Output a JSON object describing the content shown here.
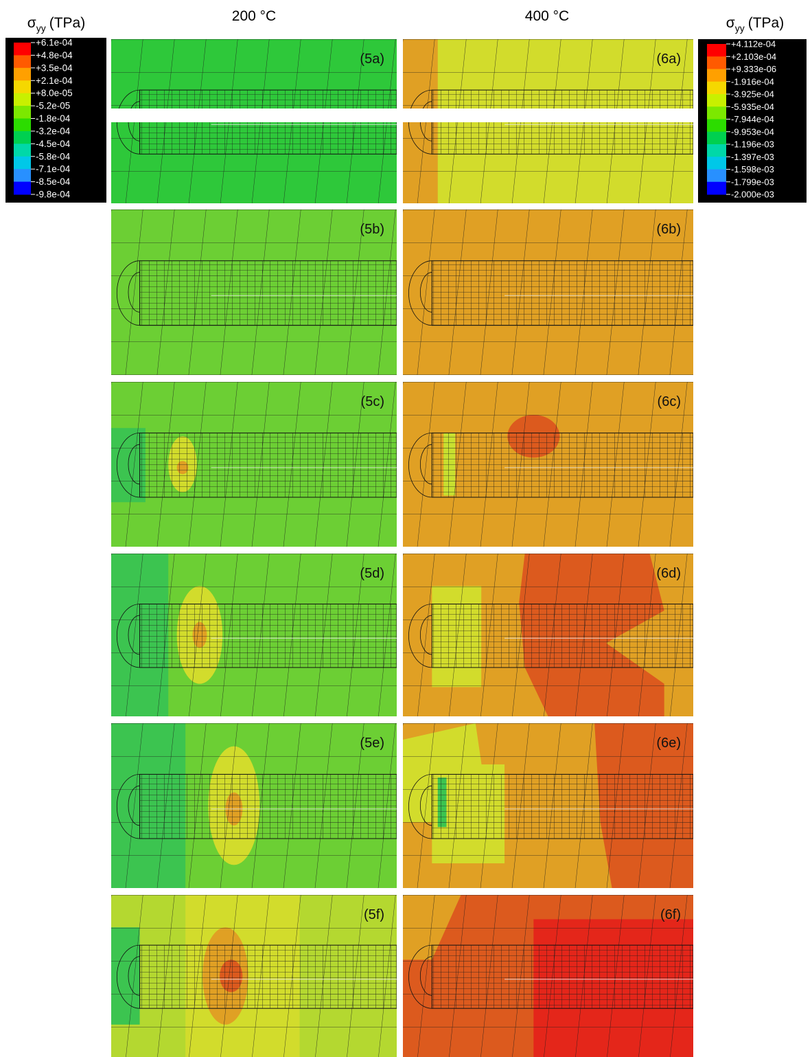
{
  "columns": [
    "200 °C",
    "400 °C"
  ],
  "legends": [
    {
      "symbol": "σ",
      "subscript": "yy",
      "unit": "(TPa)",
      "labels": [
        "+6.1e-04",
        "+4.8e-04",
        "+3.5e-04",
        "+2.1e-04",
        "+8.0e-05",
        "-5.2e-05",
        "-1.8e-04",
        "-3.2e-04",
        "-4.5e-04",
        "-5.8e-04",
        "-7.1e-04",
        "-8.5e-04",
        "-9.8e-04"
      ]
    },
    {
      "symbol": "σ",
      "subscript": "yy",
      "unit": "(TPa)",
      "labels": [
        "+4.112e-04",
        "+2.103e-04",
        "+9.333e-06",
        "-1.916e-04",
        "-3.925e-04",
        "-5.935e-04",
        "-7.944e-04",
        "-9.953e-04",
        "-1.196e-03",
        "-1.397e-03",
        "-1.598e-03",
        "-1.799e-03",
        "-2.000e-03"
      ]
    }
  ],
  "panels": [
    [
      "(5a)",
      "(5b)",
      "(5c)",
      "(5d)",
      "(5e)",
      "(5f)"
    ],
    [
      "(6a)",
      "(6b)",
      "(6c)",
      "(6d)",
      "(6e)",
      "(6f)"
    ]
  ]
}
